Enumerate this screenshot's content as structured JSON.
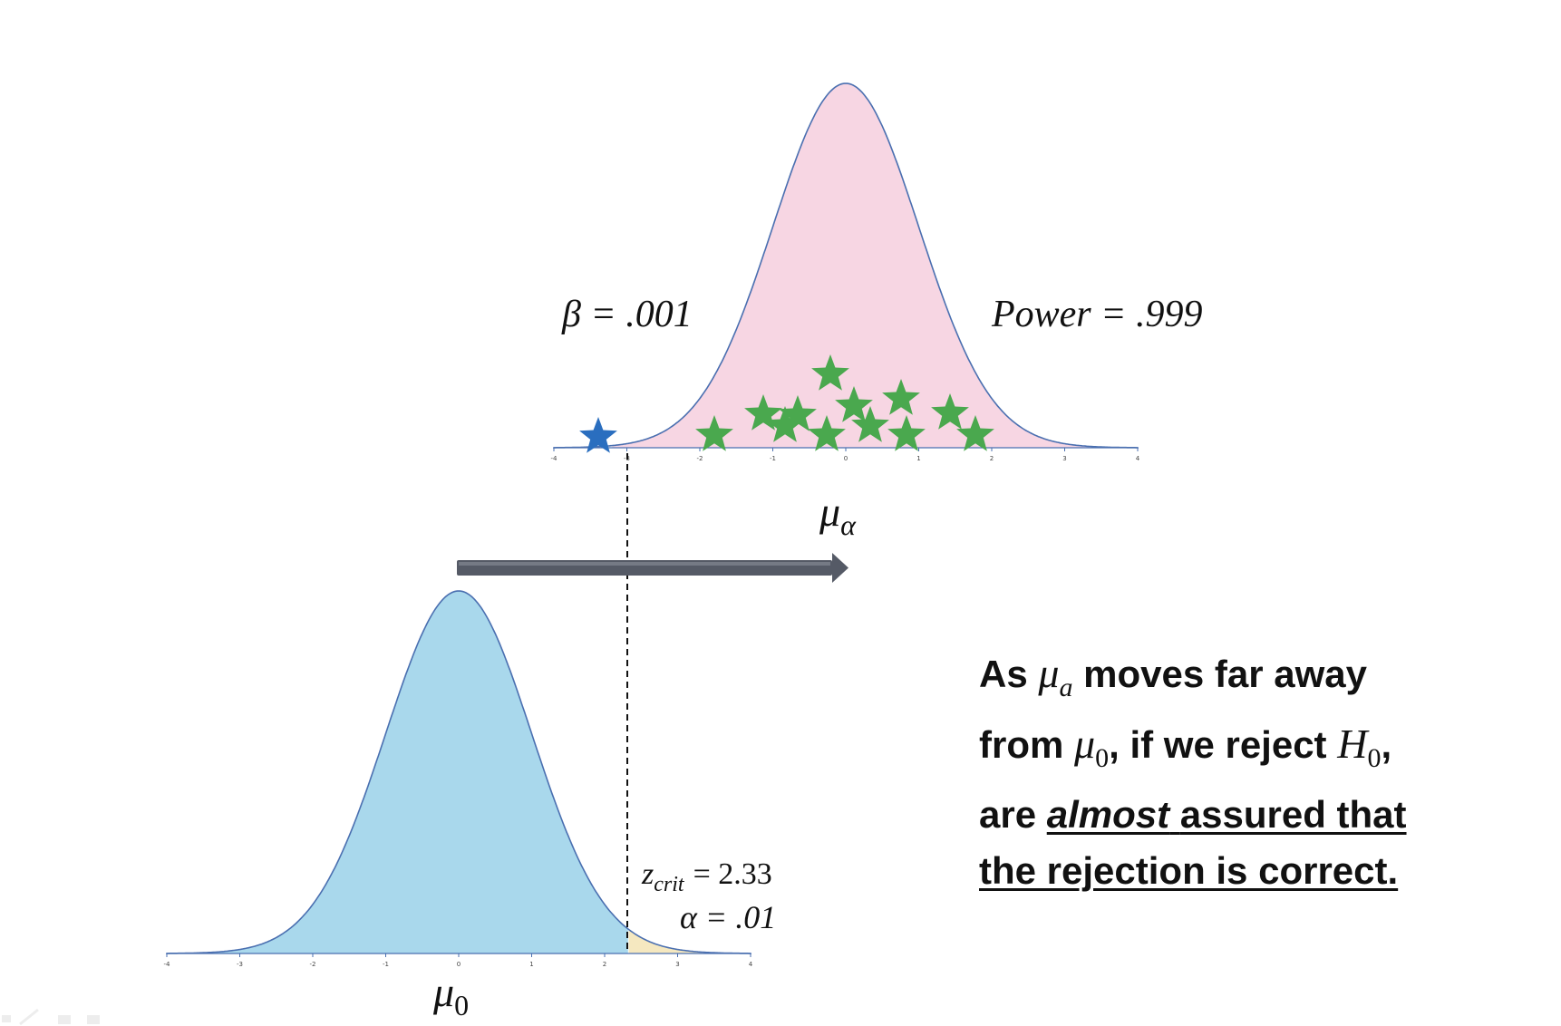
{
  "figure": {
    "alt_distribution": {
      "axis_ticks": [
        "-4",
        "-3",
        "-2",
        "-1",
        "0",
        "1",
        "2",
        "3",
        "4"
      ],
      "axis_label": "μ",
      "axis_label_sub": "α",
      "beta_label": "β = .001",
      "power_label": "Power = .999",
      "fill_color": "#f7d6e3",
      "stroke_color": "#4a6fb0",
      "stars_in_rejection": 12,
      "stars_in_beta": 1,
      "star_color_reject": "#4aa84e",
      "star_color_beta": "#2a6ebf"
    },
    "null_distribution": {
      "axis_ticks": [
        "-4",
        "-3",
        "-2",
        "-1",
        "0",
        "1",
        "2",
        "3",
        "4"
      ],
      "axis_label": "μ",
      "axis_label_sub": "0",
      "zcrit_label_var": "z",
      "zcrit_label_sub": "crit",
      "zcrit_label_value": "= 2.33",
      "alpha_label": "α = .01",
      "fill_color": "#a9d8ec",
      "tail_color": "#f5e8c0",
      "stroke_color": "#4a6fb0"
    },
    "shift_arrow_color": "#555a66"
  },
  "statement": {
    "line1_a": "As",
    "line1_mu": "μ",
    "line1_sub": "a",
    "line1_b": "moves far away",
    "line2_a": "from",
    "line2_mu": "μ",
    "line2_sub": "0",
    "line2_b": ", if we reject",
    "line2_H": "H",
    "line2_Hsub": "0",
    "line2_c": ",",
    "line3_a": "are",
    "line3_italic": "almost",
    "line3_b": "assured that",
    "line4": "the rejection is correct."
  }
}
